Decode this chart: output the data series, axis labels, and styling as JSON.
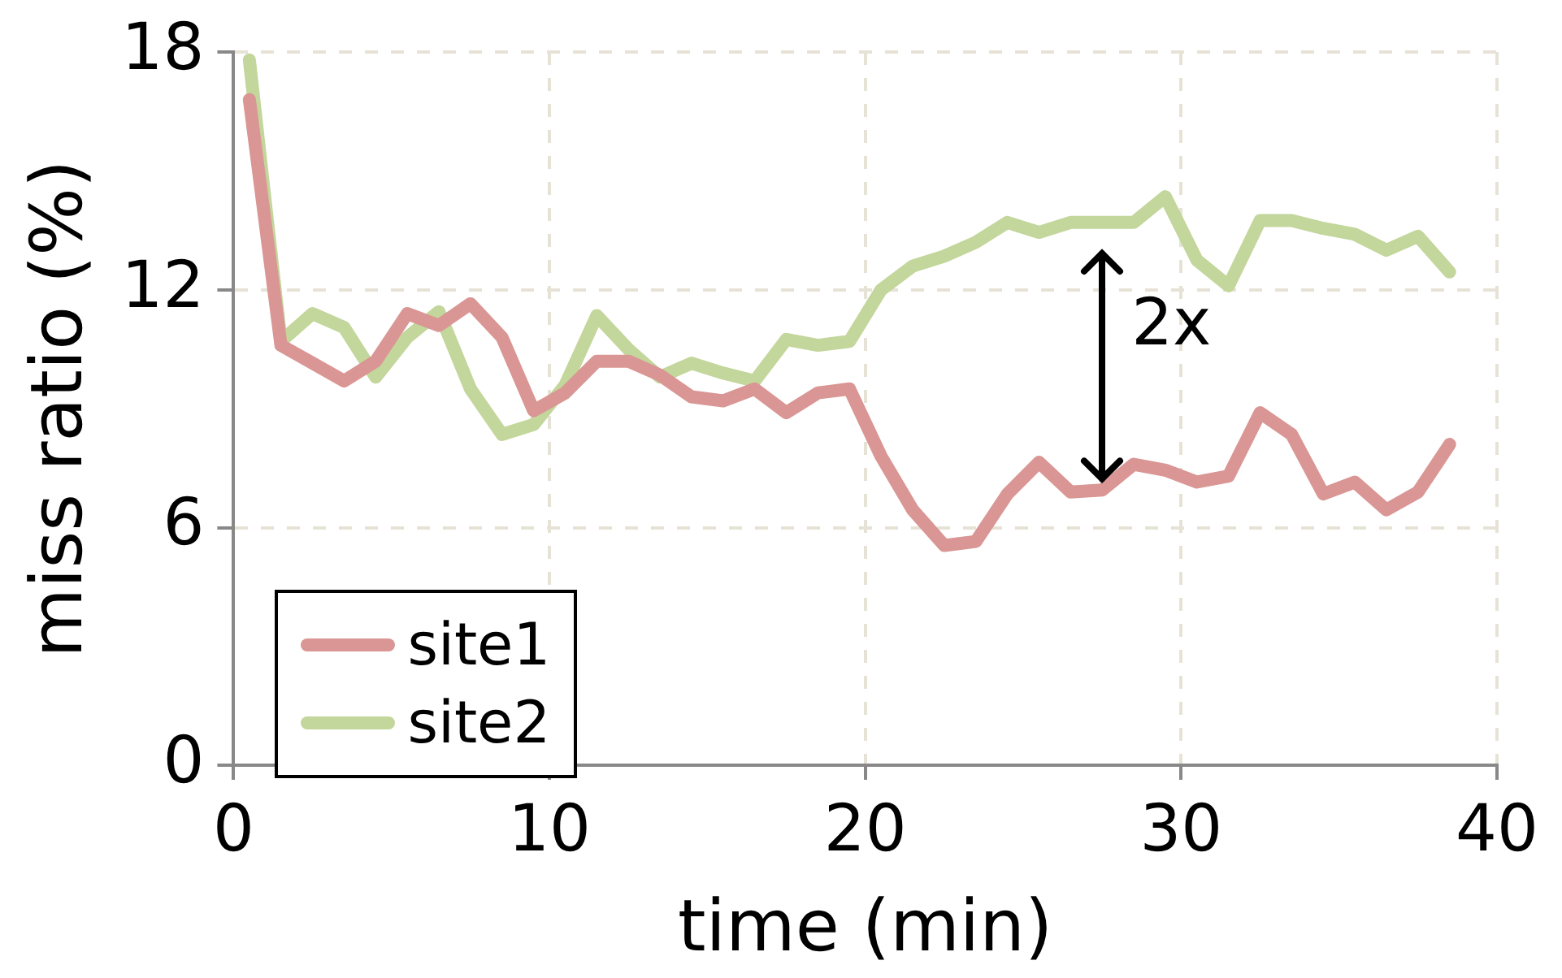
{
  "chart_data": {
    "type": "line",
    "xlabel": "time (min)",
    "ylabel": "miss ratio (%)",
    "x": [
      0.5,
      1.5,
      2.5,
      3.5,
      4.5,
      5.5,
      6.5,
      7.5,
      8.5,
      9.5,
      10.5,
      11.5,
      12.5,
      13.5,
      14.5,
      15.5,
      16.5,
      17.5,
      18.5,
      19.5,
      20.5,
      21.5,
      22.5,
      23.5,
      24.5,
      25.5,
      26.5,
      27.5,
      28.5,
      29.5,
      30.5,
      31.5,
      32.5,
      33.5,
      34.5,
      35.5,
      36.5,
      37.5,
      38.5
    ],
    "series": [
      {
        "name": "site1",
        "color": "#d99694",
        "values": [
          16.8,
          10.6,
          10.15,
          9.7,
          10.2,
          11.4,
          11.1,
          11.65,
          10.8,
          8.95,
          9.4,
          10.2,
          10.2,
          9.85,
          9.3,
          9.2,
          9.5,
          8.9,
          9.4,
          9.5,
          7.8,
          6.45,
          5.55,
          5.65,
          6.85,
          7.65,
          6.9,
          6.95,
          7.6,
          7.45,
          7.15,
          7.3,
          8.9,
          8.35,
          6.85,
          7.15,
          6.45,
          6.9,
          8.1
        ]
      },
      {
        "name": "site2",
        "color": "#c3d69b",
        "values": [
          17.8,
          10.7,
          11.4,
          11.05,
          9.8,
          10.8,
          11.45,
          9.5,
          8.35,
          8.6,
          9.6,
          11.35,
          10.5,
          9.8,
          10.15,
          9.9,
          9.7,
          10.75,
          10.6,
          10.7,
          12.0,
          12.6,
          12.85,
          13.2,
          13.7,
          13.45,
          13.7,
          13.7,
          13.7,
          14.35,
          12.75,
          12.1,
          13.75,
          13.75,
          13.55,
          13.4,
          13.0,
          13.35,
          12.45
        ]
      }
    ],
    "xlim": [
      0,
      40
    ],
    "xticks": [
      0,
      10,
      20,
      30,
      40
    ],
    "ylim": [
      0,
      18
    ],
    "yticks": [
      0,
      6,
      12,
      18
    ],
    "grid": true,
    "legend": "bottom left",
    "marker": "none",
    "line_style": "solid",
    "annotations": [
      {
        "text": "2x",
        "x": 27.5,
        "y": 13.7
      }
    ]
  }
}
